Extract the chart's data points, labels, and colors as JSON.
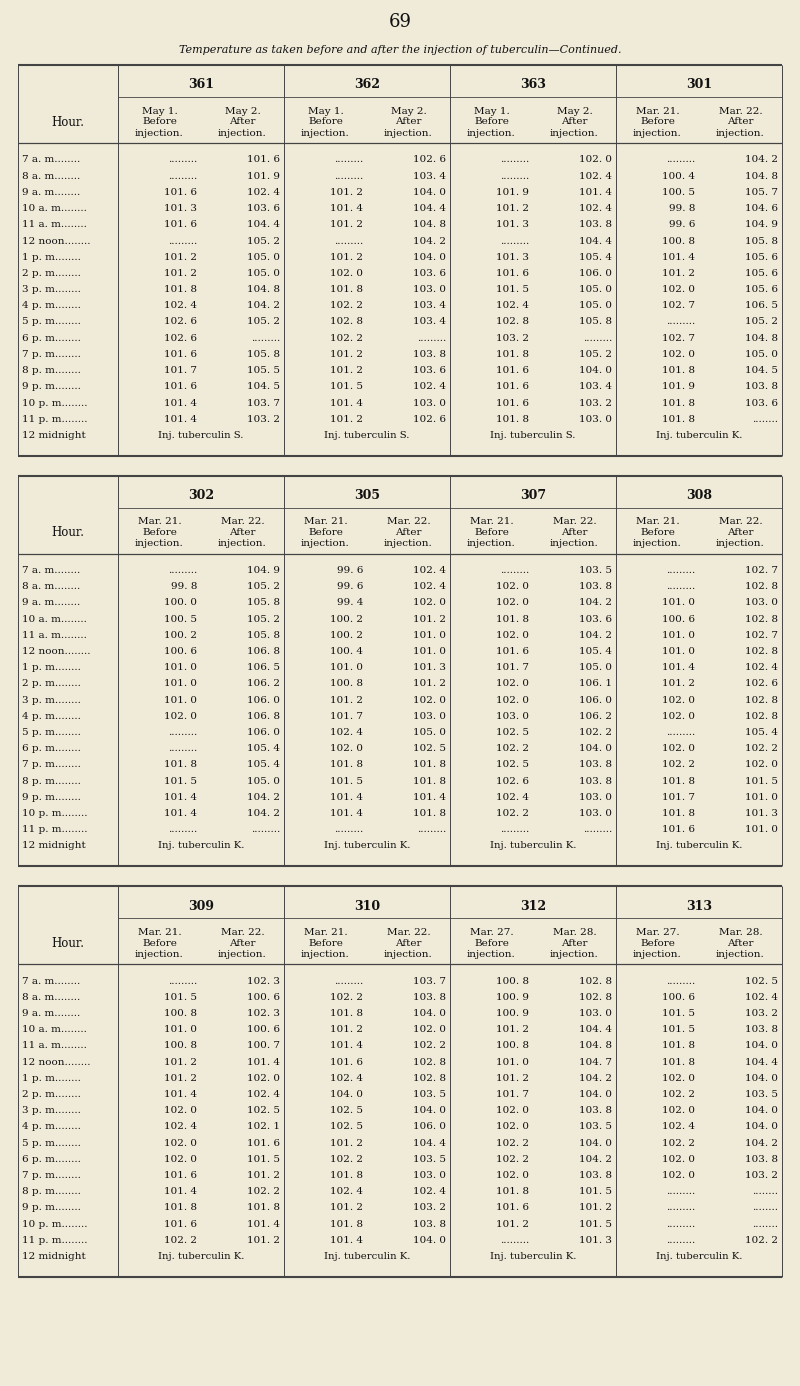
{
  "page_number": "69",
  "title": "Temperature as taken before and after the injection of tuberculin—Continued.",
  "background_color": "#f0ead8",
  "text_color": "#1a1a1a",
  "table1": {
    "sections": [
      "361",
      "362",
      "363",
      "301"
    ],
    "col_headers": [
      [
        "May 1.",
        "May 2.",
        "May 1.",
        "May 2.",
        "May 1.",
        "May 2.",
        "Mar. 21.",
        "Mar. 22."
      ],
      [
        "Before",
        "After",
        "Before",
        "After",
        "Before",
        "After",
        "Before",
        "After"
      ],
      [
        "injection.",
        "injection.",
        "injection.",
        "injection.",
        "injection.",
        "injection.",
        "injection.",
        "injection."
      ]
    ],
    "hours": [
      "7 a. m",
      "8 a. m",
      "9 a. m",
      "10 a. m",
      "11 a. m",
      "12 noon",
      "1 p. m",
      "2 p. m",
      "3 p. m",
      "4 p. m",
      "5 p. m",
      "6 p. m",
      "7 p. m",
      "8 p. m",
      "9 p. m",
      "10 p. m",
      "11 p. m",
      "12 midnight"
    ],
    "data": [
      [
        ".........",
        "101. 6",
        ".........",
        "102. 6",
        ".........",
        "102. 0",
        ".........",
        "104. 2"
      ],
      [
        ".........",
        "101. 9",
        ".........",
        "103. 4",
        ".........",
        "102. 4",
        "100. 4",
        "104. 8"
      ],
      [
        "101. 6",
        "102. 4",
        "101. 2",
        "104. 0",
        "101. 9",
        "101. 4",
        "100. 5",
        "105. 7"
      ],
      [
        "101. 3",
        "103. 6",
        "101. 4",
        "104. 4",
        "101. 2",
        "102. 4",
        "99. 8",
        "104. 6"
      ],
      [
        "101. 6",
        "104. 4",
        "101. 2",
        "104. 8",
        "101. 3",
        "103. 8",
        "99. 6",
        "104. 9"
      ],
      [
        ".........",
        "105. 2",
        ".........",
        "104. 2",
        ".........",
        "104. 4",
        "100. 8",
        "105. 8"
      ],
      [
        "101. 2",
        "105. 0",
        "101. 2",
        "104. 0",
        "101. 3",
        "105. 4",
        "101. 4",
        "105. 6"
      ],
      [
        "101. 2",
        "105. 0",
        "102. 0",
        "103. 6",
        "101. 6",
        "106. 0",
        "101. 2",
        "105. 6"
      ],
      [
        "101. 8",
        "104. 8",
        "101. 8",
        "103. 0",
        "101. 5",
        "105. 0",
        "102. 0",
        "105. 6"
      ],
      [
        "102. 4",
        "104. 2",
        "102. 2",
        "103. 4",
        "102. 4",
        "105. 0",
        "102. 7",
        "106. 5"
      ],
      [
        "102. 6",
        "105. 2",
        "102. 8",
        "103. 4",
        "102. 8",
        "105. 8",
        ".........",
        "105. 2"
      ],
      [
        "102. 6",
        ".........",
        "102. 2",
        ".........",
        "103. 2",
        ".........",
        "102. 7",
        "104. 8"
      ],
      [
        "101. 6",
        "105. 8",
        "101. 2",
        "103. 8",
        "101. 8",
        "105. 2",
        "102. 0",
        "105. 0"
      ],
      [
        "101. 7",
        "105. 5",
        "101. 2",
        "103. 6",
        "101. 6",
        "104. 0",
        "101. 8",
        "104. 5"
      ],
      [
        "101. 6",
        "104. 5",
        "101. 5",
        "102. 4",
        "101. 6",
        "103. 4",
        "101. 9",
        "103. 8"
      ],
      [
        "101. 4",
        "103. 7",
        "101. 4",
        "103. 0",
        "101. 6",
        "103. 2",
        "101. 8",
        "103. 6"
      ],
      [
        "101. 4",
        "103. 2",
        "101. 2",
        "102. 6",
        "101. 8",
        "103. 0",
        "101. 8",
        "........"
      ],
      [
        "Inj. tuberculin S.",
        "",
        "Inj. tuberculin S.",
        "",
        "Inj. tuberculin S.",
        "",
        "Inj. tuberculin K.",
        ""
      ]
    ]
  },
  "table2": {
    "sections": [
      "302",
      "305",
      "307",
      "308"
    ],
    "col_headers": [
      [
        "Mar. 21.",
        "Mar. 22.",
        "Mar. 21.",
        "Mar. 22.",
        "Mar. 21.",
        "Mar. 22.",
        "Mar. 21.",
        "Mar. 22."
      ],
      [
        "Before",
        "After",
        "Before",
        "After",
        "Before",
        "After",
        "Before",
        "After"
      ],
      [
        "injection.",
        "injection.",
        "injection.",
        "injection.",
        "injection.",
        "injection.",
        "injection.",
        "injection."
      ]
    ],
    "hours": [
      "7 a. m",
      "8 a. m",
      "9 a. m",
      "10 a. m",
      "11 a. m",
      "12 noon",
      "1 p. m",
      "2 p. m",
      "3 p. m",
      "4 p. m",
      "5 p. m",
      "6 p. m",
      "7 p. m",
      "8 p. m",
      "9 p. m",
      "10 p. m",
      "11 p. m",
      "12 midnight"
    ],
    "data": [
      [
        ".........",
        "104. 9",
        "99. 6",
        "102. 4",
        ".........",
        "103. 5",
        ".........",
        "102. 7"
      ],
      [
        "99. 8",
        "105. 2",
        "99. 6",
        "102. 4",
        "102. 0",
        "103. 8",
        ".........",
        "102. 8"
      ],
      [
        "100. 0",
        "105. 8",
        "99. 4",
        "102. 0",
        "102. 0",
        "104. 2",
        "101. 0",
        "103. 0"
      ],
      [
        "100. 5",
        "105. 2",
        "100. 2",
        "101. 2",
        "101. 8",
        "103. 6",
        "100. 6",
        "102. 8"
      ],
      [
        "100. 2",
        "105. 8",
        "100. 2",
        "101. 0",
        "102. 0",
        "104. 2",
        "101. 0",
        "102. 7"
      ],
      [
        "100. 6",
        "106. 8",
        "100. 4",
        "101. 0",
        "101. 6",
        "105. 4",
        "101. 0",
        "102. 8"
      ],
      [
        "101. 0",
        "106. 5",
        "101. 0",
        "101. 3",
        "101. 7",
        "105. 0",
        "101. 4",
        "102. 4"
      ],
      [
        "101. 0",
        "106. 2",
        "100. 8",
        "101. 2",
        "102. 0",
        "106. 1",
        "101. 2",
        "102. 6"
      ],
      [
        "101. 0",
        "106. 0",
        "101. 2",
        "102. 0",
        "102. 0",
        "106. 0",
        "102. 0",
        "102. 8"
      ],
      [
        "102. 0",
        "106. 8",
        "101. 7",
        "103. 0",
        "103. 0",
        "106. 2",
        "102. 0",
        "102. 8"
      ],
      [
        ".........",
        "106. 0",
        "102. 4",
        "105. 0",
        "102. 5",
        "102. 2",
        ".........",
        "105. 4"
      ],
      [
        ".........",
        "105. 4",
        "102. 0",
        "102. 5",
        "102. 2",
        "104. 0",
        "102. 0",
        "102. 2"
      ],
      [
        "101. 8",
        "105. 4",
        "101. 8",
        "101. 8",
        "102. 5",
        "103. 8",
        "102. 2",
        "102. 0"
      ],
      [
        "101. 5",
        "105. 0",
        "101. 5",
        "101. 8",
        "102. 6",
        "103. 8",
        "101. 8",
        "101. 5"
      ],
      [
        "101. 4",
        "104. 2",
        "101. 4",
        "101. 4",
        "102. 4",
        "103. 0",
        "101. 7",
        "101. 0"
      ],
      [
        "101. 4",
        "104. 2",
        "101. 4",
        "101. 8",
        "102. 2",
        "103. 0",
        "101. 8",
        "101. 3"
      ],
      [
        ".........",
        ".........",
        ".........",
        ".........",
        ".........",
        ".........",
        "101. 6",
        "101. 0"
      ],
      [
        "Inj. tuberculin K.",
        "",
        "Inj. tuberculin K.",
        "",
        "Inj. tuberculin K.",
        "",
        "Inj. tuberculin K.",
        ""
      ]
    ]
  },
  "table3": {
    "sections": [
      "309",
      "310",
      "312",
      "313"
    ],
    "col_headers": [
      [
        "Mar. 21.",
        "Mar. 22.",
        "Mar. 21.",
        "Mar. 22.",
        "Mar. 27.",
        "Mar. 28.",
        "Mar. 27.",
        "Mar. 28."
      ],
      [
        "Before",
        "After",
        "Before",
        "After",
        "Before",
        "After",
        "Before",
        "After"
      ],
      [
        "injection.",
        "injection.",
        "injection.",
        "injection.",
        "injection.",
        "injection.",
        "injection.",
        "injection."
      ]
    ],
    "hours": [
      "7 a. m",
      "8 a. m",
      "9 a. m",
      "10 a. m",
      "11 a. m",
      "12 noon",
      "1 p. m",
      "2 p. m",
      "3 p. m",
      "4 p. m",
      "5 p. m",
      "6 p. m",
      "7 p. m",
      "8 p. m",
      "9 p. m",
      "10 p. m",
      "11 p. m",
      "12 midnight"
    ],
    "data": [
      [
        ".........",
        "102. 3",
        ".........",
        "103. 7",
        "100. 8",
        "102. 8",
        ".........",
        "102. 5"
      ],
      [
        "101. 5",
        "100. 6",
        "102. 2",
        "103. 8",
        "100. 9",
        "102. 8",
        "100. 6",
        "102. 4"
      ],
      [
        "100. 8",
        "102. 3",
        "101. 8",
        "104. 0",
        "100. 9",
        "103. 0",
        "101. 5",
        "103. 2"
      ],
      [
        "101. 0",
        "100. 6",
        "101. 2",
        "102. 0",
        "101. 2",
        "104. 4",
        "101. 5",
        "103. 8"
      ],
      [
        "100. 8",
        "100. 7",
        "101. 4",
        "102. 2",
        "100. 8",
        "104. 8",
        "101. 8",
        "104. 0"
      ],
      [
        "101. 2",
        "101. 4",
        "101. 6",
        "102. 8",
        "101. 0",
        "104. 7",
        "101. 8",
        "104. 4"
      ],
      [
        "101. 2",
        "102. 0",
        "102. 4",
        "102. 8",
        "101. 2",
        "104. 2",
        "102. 0",
        "104. 0"
      ],
      [
        "101. 4",
        "102. 4",
        "104. 0",
        "103. 5",
        "101. 7",
        "104. 0",
        "102. 2",
        "103. 5"
      ],
      [
        "102. 0",
        "102. 5",
        "102. 5",
        "104. 0",
        "102. 0",
        "103. 8",
        "102. 0",
        "104. 0"
      ],
      [
        "102. 4",
        "102. 1",
        "102. 5",
        "106. 0",
        "102. 0",
        "103. 5",
        "102. 4",
        "104. 0"
      ],
      [
        "102. 0",
        "101. 6",
        "101. 2",
        "104. 4",
        "102. 2",
        "104. 0",
        "102. 2",
        "104. 2"
      ],
      [
        "102. 0",
        "101. 5",
        "102. 2",
        "103. 5",
        "102. 2",
        "104. 2",
        "102. 0",
        "103. 8"
      ],
      [
        "101. 6",
        "101. 2",
        "101. 8",
        "103. 0",
        "102. 0",
        "103. 8",
        "102. 0",
        "103. 2"
      ],
      [
        "101. 4",
        "102. 2",
        "102. 4",
        "102. 4",
        "101. 8",
        "101. 5",
        ".........",
        "........"
      ],
      [
        "101. 8",
        "101. 8",
        "101. 2",
        "103. 2",
        "101. 6",
        "101. 2",
        ".........",
        "........"
      ],
      [
        "101. 6",
        "101. 4",
        "101. 8",
        "103. 8",
        "101. 2",
        "101. 5",
        ".........",
        "........"
      ],
      [
        "102. 2",
        "101. 2",
        "101. 4",
        "104. 0",
        ".........",
        "101. 3",
        ".........",
        "102. 2"
      ],
      [
        "Inj. tuberculin K.",
        "",
        "Inj. tuberculin K.",
        "",
        "Inj. tuberculin K.",
        "",
        "Inj. tuberculin K.",
        ""
      ]
    ]
  }
}
